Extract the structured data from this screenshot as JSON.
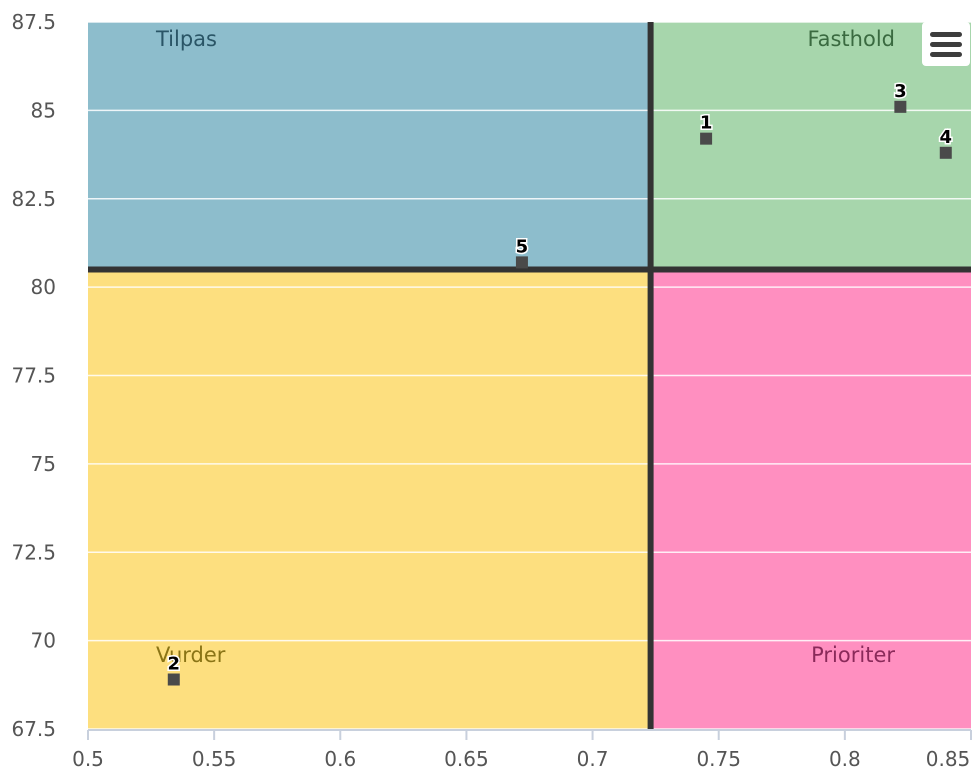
{
  "chart_data": {
    "type": "scatter",
    "xlim": [
      0.5,
      0.85
    ],
    "ylim": [
      67.5,
      87.5
    ],
    "x_ticks": [
      "0.5",
      "0.55",
      "0.6",
      "0.65",
      "0.7",
      "0.75",
      "0.8",
      "0.85"
    ],
    "y_ticks": [
      "67.5",
      "70",
      "72.5",
      "75",
      "77.5",
      "80",
      "82.5",
      "85",
      "87.5"
    ],
    "grid": true,
    "threshold_x": 0.723,
    "threshold_y": 80.5,
    "quadrants": [
      {
        "label": "Tilpas",
        "position": "top-left",
        "color": "#8dbdcc",
        "text_color": "#2a5566"
      },
      {
        "label": "Fasthold",
        "position": "top-right",
        "color": "#a7d6ac",
        "text_color": "#3a6a40"
      },
      {
        "label": "Vurder",
        "position": "bottom-left",
        "color": "#fddf7f",
        "text_color": "#8a7416"
      },
      {
        "label": "Prioriter",
        "position": "bottom-right",
        "color": "#ff8fc0",
        "text_color": "#8a2a5a"
      }
    ],
    "points": [
      {
        "label": "1",
        "x": 0.745,
        "y": 84.2
      },
      {
        "label": "2",
        "x": 0.534,
        "y": 68.9
      },
      {
        "label": "3",
        "x": 0.822,
        "y": 85.1
      },
      {
        "label": "4",
        "x": 0.84,
        "y": 83.8
      },
      {
        "label": "5",
        "x": 0.672,
        "y": 80.7
      }
    ],
    "marker_color": "#4a4a4a"
  },
  "menu": {
    "icon": "hamburger-menu-icon"
  }
}
